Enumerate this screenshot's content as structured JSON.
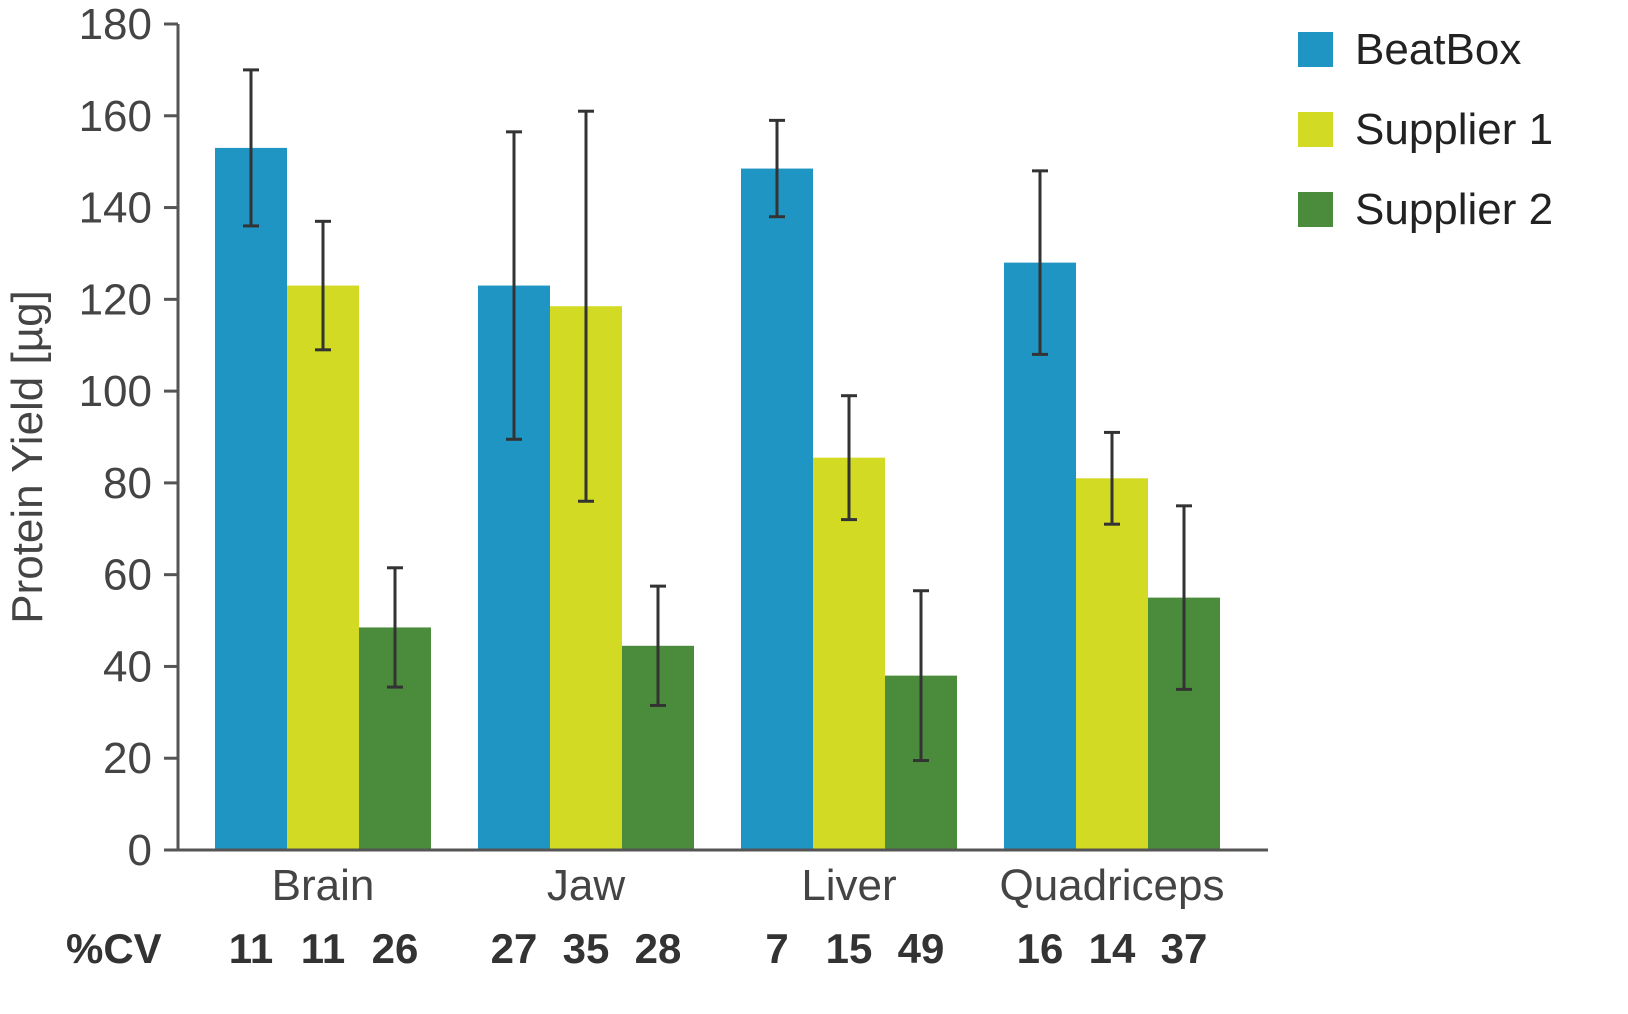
{
  "chart_data": {
    "type": "bar",
    "title": "",
    "xlabel": "",
    "ylabel": "Protein Yield [µg]",
    "ylim": [
      0,
      180
    ],
    "yticks": [
      0,
      20,
      40,
      60,
      80,
      100,
      120,
      140,
      160,
      180
    ],
    "grid": false,
    "legend_position": "top-right",
    "categories": [
      "Brain",
      "Jaw",
      "Liver",
      "Quadriceps"
    ],
    "series": [
      {
        "name": "BeatBox",
        "color": "#1f95c4",
        "values": [
          153,
          123,
          148.5,
          128
        ],
        "error": [
          17,
          33.5,
          10.5,
          20
        ]
      },
      {
        "name": "Supplier 1",
        "color": "#d2da23",
        "values": [
          123,
          118.5,
          85.5,
          81
        ],
        "error": [
          14,
          42.5,
          13.5,
          10
        ]
      },
      {
        "name": "Supplier 2",
        "color": "#4a8c3b",
        "values": [
          48.5,
          44.5,
          38,
          55
        ],
        "error": [
          13,
          13,
          18.5,
          20
        ]
      }
    ],
    "cv_label": "%CV",
    "cv_values": [
      [
        "11",
        "11",
        "26"
      ],
      [
        "27",
        "35",
        "28"
      ],
      [
        "7",
        "15",
        "49"
      ],
      [
        "16",
        "14",
        "37"
      ]
    ]
  }
}
